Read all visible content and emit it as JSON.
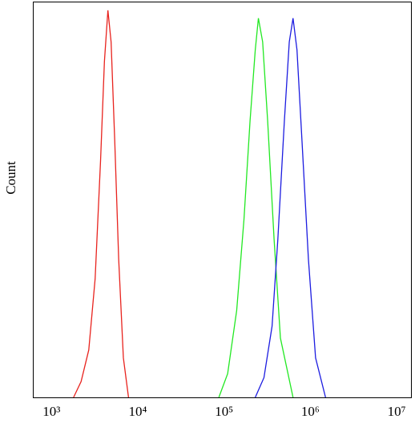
{
  "chart_data": {
    "type": "line",
    "y_label": "Count",
    "xscale": "log",
    "grid": false,
    "xlim": [
      620,
      15000000
    ],
    "ylim": [
      0,
      100
    ],
    "xticks": [
      {
        "value": 1000,
        "label": "10³"
      },
      {
        "value": 10000,
        "label": "10⁴"
      },
      {
        "value": 100000,
        "label": "10⁵"
      },
      {
        "value": 1000000,
        "label": "10⁶"
      },
      {
        "value": 10000000,
        "label": "10⁷"
      }
    ],
    "series": [
      {
        "color": "#e8231e",
        "x": [
          1800,
          2200,
          2700,
          3200,
          3700,
          4100,
          4500,
          4900,
          5400,
          6000,
          6800,
          7800
        ],
        "values": [
          0,
          4,
          12,
          30,
          60,
          85,
          98,
          90,
          65,
          35,
          10,
          0
        ]
      },
      {
        "color": "#22e822",
        "x": [
          87000,
          110000,
          140000,
          170000,
          200000,
          230000,
          250000,
          280000,
          320000,
          380000,
          450000,
          630000
        ],
        "values": [
          0,
          6,
          22,
          45,
          70,
          88,
          96,
          90,
          70,
          40,
          15,
          0
        ]
      },
      {
        "color": "#1c1ce0",
        "x": [
          230000,
          290000,
          360000,
          420000,
          500000,
          570000,
          630000,
          700000,
          800000,
          950000,
          1150000,
          1500000
        ],
        "values": [
          0,
          5,
          18,
          40,
          70,
          90,
          96,
          88,
          65,
          35,
          10,
          0
        ]
      }
    ]
  }
}
